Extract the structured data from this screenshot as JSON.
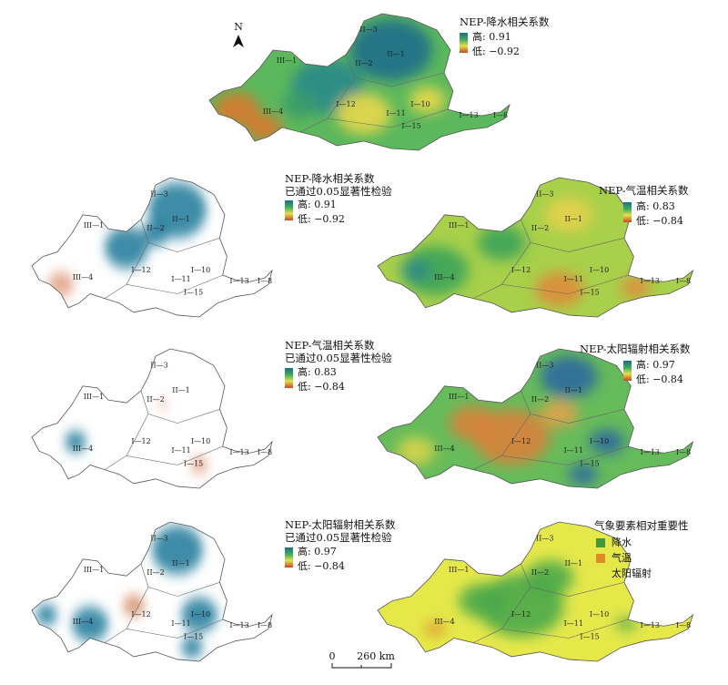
{
  "north": "N",
  "scale_bar": {
    "start": "0",
    "end": "260 km"
  },
  "region_labels": [
    "II—3",
    "II—2",
    "II—1",
    "III—1",
    "III—4",
    "I—12",
    "I—11",
    "I—10",
    "I—15",
    "I—13",
    "I—8"
  ],
  "panels": [
    {
      "title": "NEP-降水相关系数",
      "high": "高: 0.91",
      "low": "低: −0.92"
    },
    {
      "title": "NEP-降水相关系数",
      "subtitle": "已通过0.05显著性检验",
      "high": "高: 0.91",
      "low": "低: −0.92"
    },
    {
      "title": "NEP-气温相关系数",
      "high": "高: 0.83",
      "low": "低: −0.84"
    },
    {
      "title": "NEP-气温相关系数",
      "subtitle": "已通过0.05显著性检验",
      "high": "高: 0.83",
      "low": "低: −0.84"
    },
    {
      "title": "NEP-太阳辐射相关系数",
      "high": "高: 0.97",
      "low": "低: −0.84"
    },
    {
      "title": "NEP-太阳辐射相关系数",
      "subtitle": "已通过0.05显著性检验",
      "high": "高: 0.97",
      "low": "低: −0.84"
    },
    {
      "title": "气象要素相对重要性",
      "legend": [
        "降水",
        "气温",
        "太阳辐射"
      ]
    }
  ]
}
